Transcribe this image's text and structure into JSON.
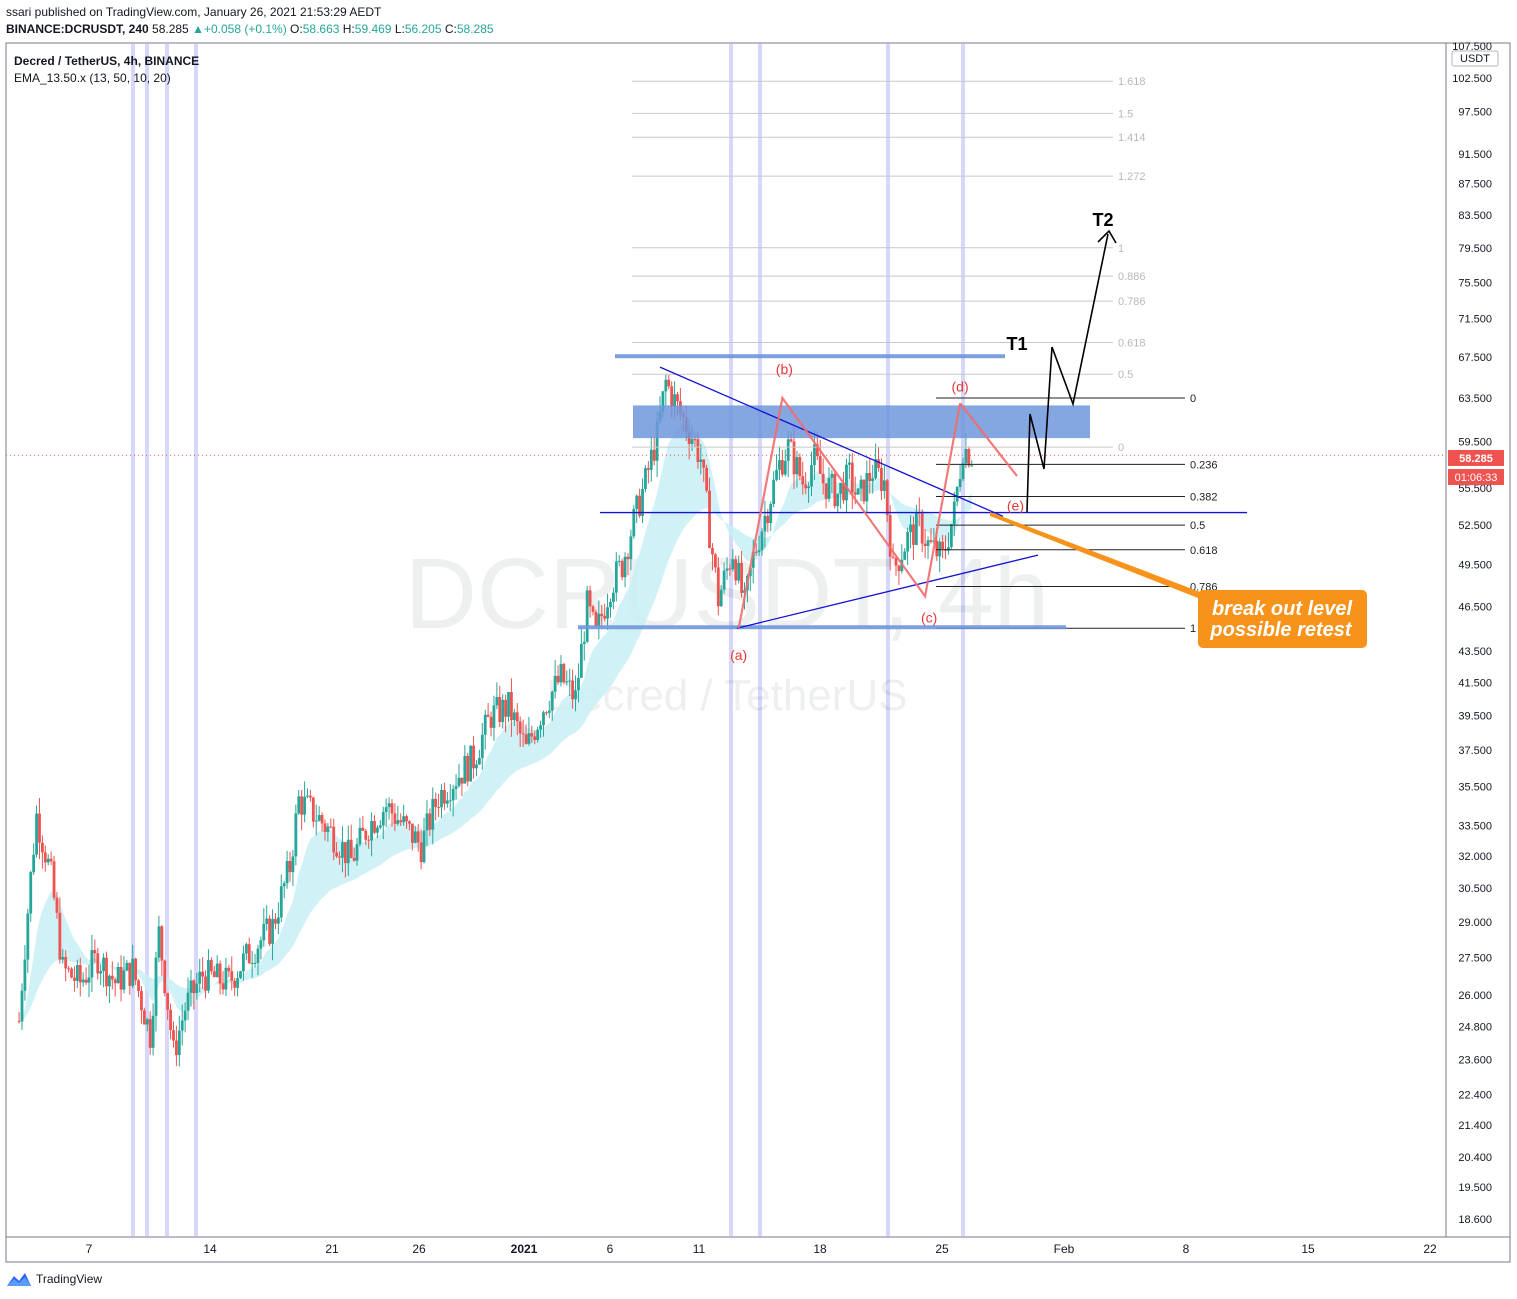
{
  "header": {
    "published": "ssari published on TradingView.com, January 26, 2021 21:53:29 AEDT",
    "symbol": "BINANCE:DCRUSDT, 240",
    "last": "58.285",
    "change": "+0.058 (+0.1%)",
    "o_label": "O:",
    "o": "58.663",
    "h_label": "H:",
    "h": "59.469",
    "l_label": "L:",
    "l": "56.205",
    "c_label": "C:",
    "c": "58.285"
  },
  "legend": {
    "title": "Decred / TetherUS, 4h, BINANCE",
    "indicator": "EMA_13.50.x (13, 50, 10, 20)"
  },
  "watermark": {
    "main": "DCRUSDT, 4h",
    "sub": "Decred / TetherUS"
  },
  "footer": {
    "brand": "TradingView"
  },
  "colors": {
    "up": "#26a69a",
    "down": "#ef5350",
    "ribbon": "#c8f0f4",
    "trend": "#1414d2",
    "zone": "#6f96dc",
    "wave": "#f26b6b",
    "projection": "#000000",
    "callout": "#f7931a"
  },
  "chart_data": {
    "type": "candlestick",
    "ylim": [
      18.1,
      108.0
    ],
    "y_scale": "log",
    "currency": "USDT",
    "y_ticks": [
      "107.500",
      "102.500",
      "97.500",
      "91.500",
      "87.500",
      "83.500",
      "79.500",
      "75.500",
      "71.500",
      "67.500",
      "63.500",
      "59.500",
      "55.500",
      "52.500",
      "49.500",
      "46.500",
      "43.500",
      "41.500",
      "39.500",
      "37.500",
      "35.500",
      "33.500",
      "32.000",
      "30.500",
      "29.000",
      "27.500",
      "26.000",
      "24.800",
      "23.600",
      "22.400",
      "21.400",
      "20.400",
      "19.500",
      "18.600"
    ],
    "x_ticks": [
      "7",
      "14",
      "21",
      "26",
      "2021",
      "6",
      "11",
      "18",
      "25",
      "Feb",
      "8",
      "15",
      "22"
    ],
    "last_price": "58.285",
    "countdown": "01:06:33",
    "price_path": [
      [
        "Dec 3 00:00",
        25.0
      ],
      [
        "Dec 4 00:00",
        34.0
      ],
      [
        "Dec 4 20:00",
        31.0
      ],
      [
        "Dec 5 12:00",
        27.0
      ],
      [
        "Dec 6 12:00",
        26.5
      ],
      [
        "Dec 7 12:00",
        27.5
      ],
      [
        "Dec 8 12:00",
        26.5
      ],
      [
        "Dec 9 12:00",
        27.0
      ],
      [
        "Dec 10 12:00",
        24.5
      ],
      [
        "Dec 11 00:00",
        28.5
      ],
      [
        "Dec 11 20:00",
        23.8
      ],
      [
        "Dec 12 12:00",
        25.5
      ],
      [
        "Dec 13 12:00",
        26.8
      ],
      [
        "Dec 15 00:00",
        26.5
      ],
      [
        "Dec 16 00:00",
        27.5
      ],
      [
        "Dec 17 12:00",
        28.8
      ],
      [
        "Dec 18 12:00",
        31.5
      ],
      [
        "Dec 19 00:00",
        34.8
      ],
      [
        "Dec 20 00:00",
        34.0
      ],
      [
        "Dec 21 00:00",
        33.0
      ],
      [
        "Dec 22 00:00",
        31.8
      ],
      [
        "Dec 23 00:00",
        33.5
      ],
      [
        "Dec 24 00:00",
        34.5
      ],
      [
        "Dec 25 00:00",
        33.5
      ],
      [
        "Dec 26 00:00",
        32.5
      ],
      [
        "Dec 27 00:00",
        35.0
      ],
      [
        "Dec 28 00:00",
        36.0
      ],
      [
        "Dec 29 00:00",
        37.0
      ],
      [
        "Dec 30 00:00",
        39.5
      ],
      [
        "Dec 31 00:00",
        40.0
      ],
      [
        "Jan 1 00:00",
        37.5
      ],
      [
        "Jan 2 00:00",
        40.0
      ],
      [
        "Jan 3 00:00",
        41.8
      ],
      [
        "Jan 3 20:00",
        40.5
      ],
      [
        "Jan 4 12:00",
        46.5
      ],
      [
        "Jan 5 00:00",
        44.5
      ],
      [
        "Jan 5 20:00",
        48.0
      ],
      [
        "Jan 6 12:00",
        49.5
      ],
      [
        "Jan 7 00:00",
        52.0
      ],
      [
        "Jan 7 20:00",
        56.0
      ],
      [
        "Jan 8 12:00",
        60.0
      ],
      [
        "Jan 9 00:00",
        65.0
      ],
      [
        "Jan 9 20:00",
        62.0
      ],
      [
        "Jan 10 12:00",
        60.0
      ],
      [
        "Jan 11 00:00",
        58.0
      ],
      [
        "Jan 11 12:00",
        52.0
      ],
      [
        "Jan 12 00:00",
        47.0
      ],
      [
        "Jan 12 20:00",
        50.5
      ],
      [
        "Jan 13 12:00",
        46.5
      ],
      [
        "Jan 14 00:00",
        50.0
      ],
      [
        "Jan 14 20:00",
        54.0
      ],
      [
        "Jan 15 12:00",
        57.5
      ],
      [
        "Jan 16 00:00",
        59.0
      ],
      [
        "Jan 16 20:00",
        56.0
      ],
      [
        "Jan 17 12:00",
        58.0
      ],
      [
        "Jan 18 00:00",
        56.0
      ],
      [
        "Jan 18 20:00",
        55.0
      ],
      [
        "Jan 19 12:00",
        56.5
      ],
      [
        "Jan 20 00:00",
        54.5
      ],
      [
        "Jan 20 20:00",
        57.0
      ],
      [
        "Jan 21 12:00",
        56.0
      ],
      [
        "Jan 22 00:00",
        49.0
      ],
      [
        "Jan 22 20:00",
        51.5
      ],
      [
        "Jan 23 12:00",
        52.5
      ],
      [
        "Jan 24 00:00",
        51.0
      ],
      [
        "Jan 24 20:00",
        50.0
      ],
      [
        "Jan 25 12:00",
        53.5
      ],
      [
        "Jan 26 00:00",
        59.0
      ],
      [
        "Jan 26 12:00",
        58.3
      ]
    ],
    "fib_upper": {
      "levels": [
        "1.618",
        "1.5",
        "1.414",
        "1.272",
        "1",
        "0.886",
        "0.786",
        "0.618",
        "0.5",
        "0"
      ],
      "prices": [
        102.0,
        97.2,
        93.8,
        88.5,
        79.5,
        76.2,
        73.4,
        69.0,
        65.8,
        59.0
      ]
    },
    "fib_lower": {
      "levels": [
        "0",
        "0.236",
        "0.382",
        "0.5",
        "0.618",
        "0.786",
        "1"
      ],
      "prices": [
        63.5,
        57.5,
        54.8,
        52.5,
        50.6,
        47.9,
        45.0
      ]
    },
    "wave_labels": [
      "(a)",
      "(b)",
      "(c)",
      "(d)",
      "(e)"
    ],
    "waves": [
      {
        "label": "(a)",
        "time": "Jan 13 04:00",
        "price": 45.0
      },
      {
        "label": "(b)",
        "time": "Jan 15 16:00",
        "price": 63.5
      },
      {
        "label": "(c)",
        "time": "Jan 23 20:00",
        "price": 47.2
      },
      {
        "label": "(d)",
        "time": "Jan 25 20:00",
        "price": 63.0
      },
      {
        "label": "(e)",
        "time": "Jan 29 00:00",
        "price": 54.0
      }
    ],
    "targets": [
      {
        "label": "T1",
        "price": 69.5
      },
      {
        "label": "T2",
        "price": 81.0
      }
    ],
    "callout": [
      "break out level",
      "possible retest"
    ]
  }
}
